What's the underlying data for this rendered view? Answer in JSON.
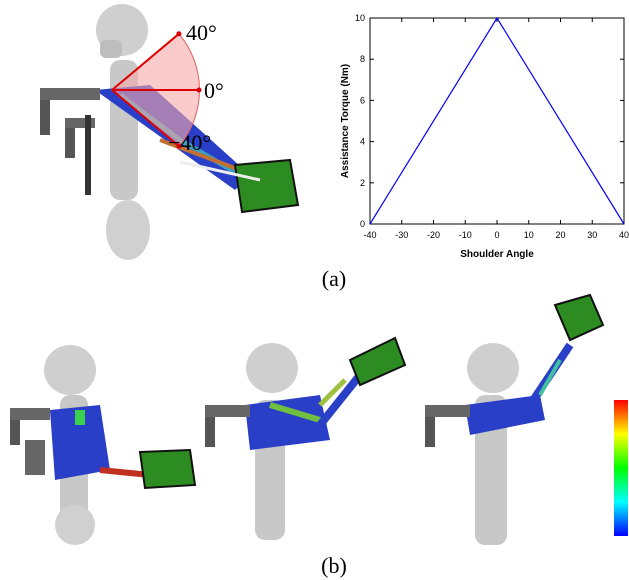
{
  "chart_data": {
    "type": "line",
    "x": [
      -40,
      0,
      40
    ],
    "values": [
      0,
      10,
      0
    ],
    "color": "#0000ff",
    "xlabel": "Shoulder Angle",
    "ylabel": "Assistance Torque (Nm)",
    "xlim": [
      -40,
      40
    ],
    "ylim": [
      0,
      10
    ],
    "xticks": [
      -40,
      -30,
      -20,
      -10,
      0,
      10,
      20,
      30,
      40
    ],
    "yticks": [
      0,
      2,
      4,
      6,
      8,
      10
    ],
    "grid": false
  },
  "angle_labels": [
    "40°",
    "0°",
    "−40°"
  ],
  "captions": [
    "(a)",
    "(b)"
  ]
}
